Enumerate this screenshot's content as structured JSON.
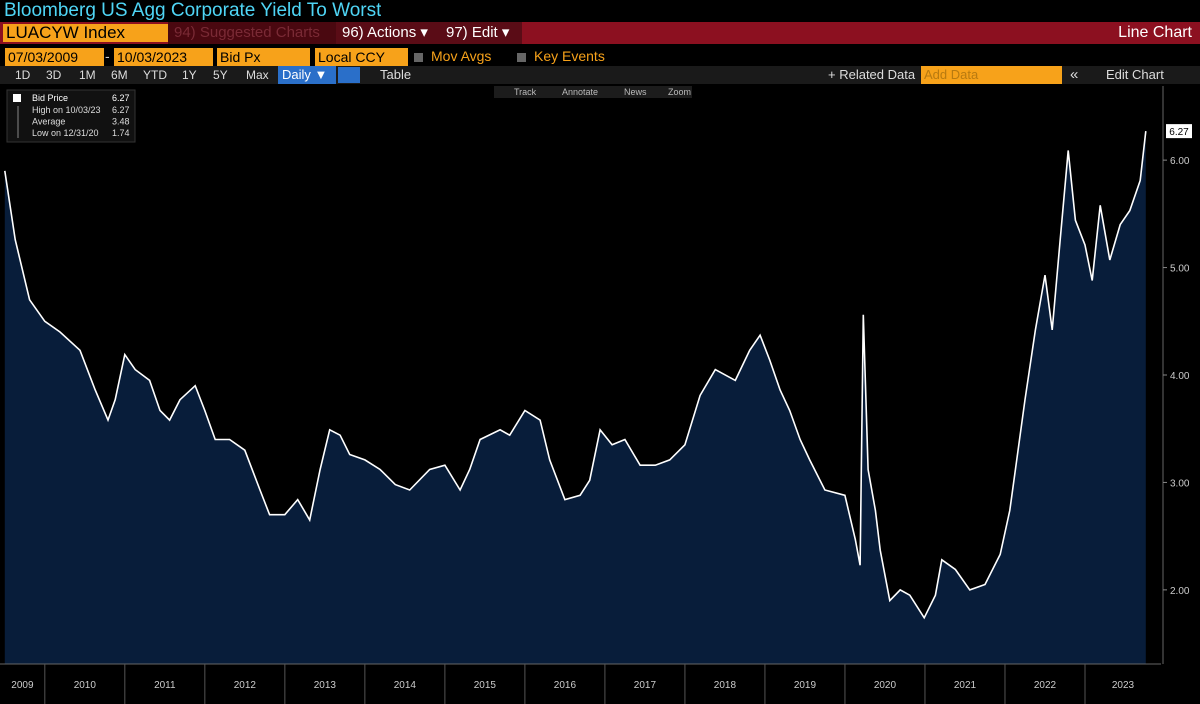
{
  "toolbar": {
    "title": "Bloomberg US Agg Corporate Yield To Worst",
    "security": "LUACYW Index",
    "menu": [
      "94) Suggested Charts",
      "96) Actions ▾",
      "97) Edit ▾"
    ],
    "chart_type": "Line Chart",
    "start_date": "07/03/2009",
    "date_separator": "-",
    "end_date": "10/03/2023",
    "field": "Bid Px",
    "currency": "Local CCY",
    "options": [
      "Mov Avgs",
      "Key Events"
    ],
    "periods": [
      "1D",
      "3D",
      "1M",
      "6M",
      "YTD",
      "1Y",
      "5Y",
      "Max"
    ],
    "frequency": "Daily ▼",
    "table": "Table",
    "related": "+ Related Data",
    "add_data": "Add Data",
    "collapse": "«",
    "edit_chart": "Edit Chart",
    "tools": [
      "Track",
      "Annotate",
      "News",
      "Zoom"
    ]
  },
  "chart_data": {
    "type": "line",
    "legend": {
      "name": "Bid Price",
      "value": "6.27",
      "stats": [
        {
          "label": "High on 10/03/23",
          "value": "6.27"
        },
        {
          "label": "Average",
          "value": "3.48"
        },
        {
          "label": "Low on 12/31/20",
          "value": "1.74"
        }
      ]
    },
    "x": [
      2009.5,
      2009.63,
      2009.81,
      2010.0,
      2010.19,
      2010.44,
      2010.63,
      2010.79,
      2010.88,
      2011.0,
      2011.13,
      2011.31,
      2011.44,
      2011.56,
      2011.69,
      2011.88,
      2012.0,
      2012.13,
      2012.31,
      2012.5,
      2012.69,
      2012.81,
      2013.0,
      2013.16,
      2013.31,
      2013.44,
      2013.56,
      2013.69,
      2013.81,
      2014.0,
      2014.19,
      2014.38,
      2014.56,
      2014.81,
      2015.0,
      2015.19,
      2015.31,
      2015.44,
      2015.69,
      2015.81,
      2016.0,
      2016.19,
      2016.31,
      2016.5,
      2016.69,
      2016.81,
      2016.94,
      2017.09,
      2017.25,
      2017.44,
      2017.63,
      2017.81,
      2018.0,
      2018.19,
      2018.38,
      2018.63,
      2018.81,
      2018.94,
      2019.06,
      2019.19,
      2019.31,
      2019.44,
      2019.56,
      2019.75,
      2020.0,
      2020.13,
      2020.19,
      2020.23,
      2020.29,
      2020.38,
      2020.44,
      2020.56,
      2020.69,
      2020.81,
      2020.99,
      2021.13,
      2021.21,
      2021.38,
      2021.56,
      2021.75,
      2021.94,
      2022.06,
      2022.25,
      2022.38,
      2022.5,
      2022.59,
      2022.69,
      2022.79,
      2022.88,
      2023.0,
      2023.09,
      2023.19,
      2023.31,
      2023.44,
      2023.56,
      2023.69,
      2023.76
    ],
    "series": [
      {
        "name": "Bid Price",
        "color": "#ffffff",
        "fill": "#081d3a",
        "values": [
          5.9,
          5.26,
          4.7,
          4.5,
          4.4,
          4.23,
          3.86,
          3.58,
          3.77,
          4.19,
          4.05,
          3.95,
          3.67,
          3.58,
          3.77,
          3.9,
          3.67,
          3.4,
          3.4,
          3.3,
          2.93,
          2.7,
          2.7,
          2.84,
          2.65,
          3.12,
          3.49,
          3.44,
          3.26,
          3.21,
          3.12,
          2.98,
          2.93,
          3.12,
          3.16,
          2.93,
          3.12,
          3.4,
          3.49,
          3.44,
          3.67,
          3.58,
          3.21,
          2.84,
          2.88,
          3.02,
          3.49,
          3.35,
          3.4,
          3.16,
          3.16,
          3.21,
          3.35,
          3.81,
          4.05,
          3.95,
          4.23,
          4.37,
          4.14,
          3.86,
          3.67,
          3.4,
          3.21,
          2.93,
          2.88,
          2.47,
          2.23,
          4.56,
          3.12,
          2.74,
          2.37,
          1.9,
          2.0,
          1.95,
          1.74,
          1.95,
          2.28,
          2.19,
          2.0,
          2.05,
          2.33,
          2.74,
          3.77,
          4.42,
          4.93,
          4.42,
          5.26,
          6.09,
          5.44,
          5.21,
          4.88,
          5.58,
          5.07,
          5.4,
          5.53,
          5.81,
          6.27
        ],
        "value_labels": [
          null,
          null,
          null,
          null,
          null,
          null,
          null,
          null,
          null,
          null,
          null,
          null,
          null,
          null,
          null,
          null,
          null,
          null,
          null,
          null,
          null,
          null,
          null,
          null,
          null,
          null,
          null,
          null,
          null,
          null,
          null,
          null,
          null,
          null,
          null,
          null,
          null,
          null,
          null,
          null,
          null,
          null,
          null,
          null,
          null,
          null,
          null,
          null,
          null,
          null,
          null,
          null,
          null,
          null,
          null,
          null,
          null,
          null,
          null,
          null,
          null,
          null,
          null,
          null,
          null,
          null,
          null,
          null,
          null,
          null,
          null,
          null,
          null,
          null,
          null,
          null,
          null,
          null,
          null,
          null,
          null,
          null,
          null,
          null,
          null,
          null,
          null,
          null,
          null,
          null,
          null,
          null,
          null,
          null,
          null,
          null,
          "6.27"
        ]
      }
    ],
    "xlim": [
      2009.44,
      2023.95
    ],
    "xticks": [
      2009,
      2010,
      2011,
      2012,
      2013,
      2014,
      2015,
      2016,
      2017,
      2018,
      2019,
      2020,
      2021,
      2022,
      2023
    ],
    "ylim": [
      1.31,
      6.69
    ],
    "yticks": [
      {
        "value": 2,
        "label": "2.00"
      },
      {
        "value": 3,
        "label": "3.00"
      },
      {
        "value": 4,
        "label": "4.00"
      },
      {
        "value": 5,
        "label": "5.00"
      },
      {
        "value": 6,
        "label": "6.00"
      }
    ]
  }
}
